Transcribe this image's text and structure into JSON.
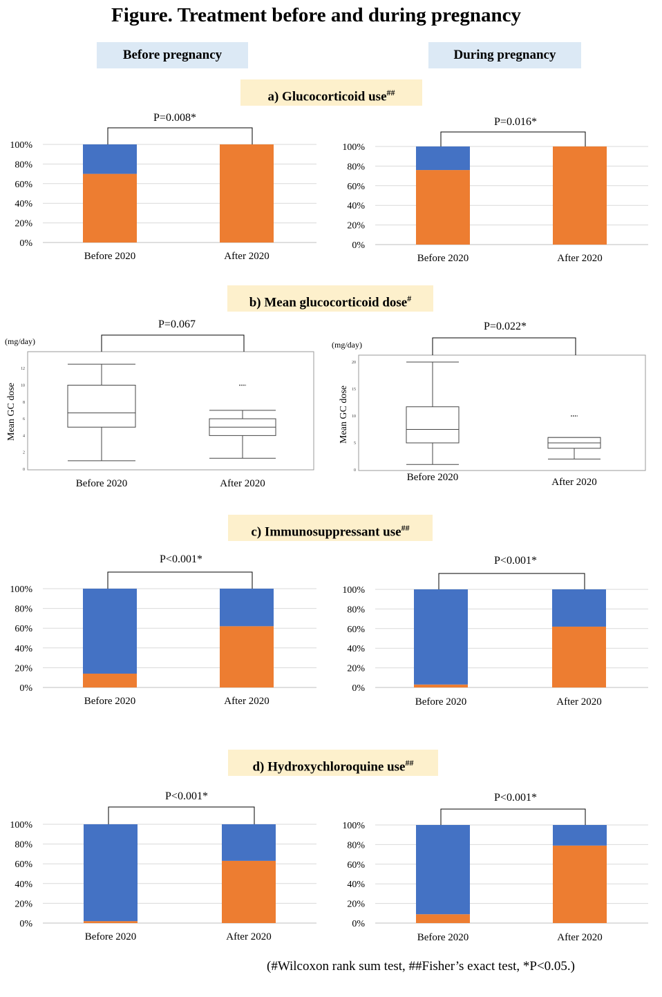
{
  "title": "Figure. Treatment before and during pregnancy",
  "columns": {
    "before": "Before pregnancy",
    "during": "During pregnancy"
  },
  "sections": [
    {
      "label": "a) Glucocorticoid  use",
      "mark": "##"
    },
    {
      "label": "b) Mean glucocorticoid dose",
      "mark": "#"
    },
    {
      "label": "c) Immunosuppressant use",
      "mark": "##"
    },
    {
      "label": "d) Hydroxychloroquine use",
      "mark": "##"
    }
  ],
  "colors": {
    "orange": "#ed7d31",
    "blue": "#4472c4",
    "grid": "#d9d9d9"
  },
  "footnote": "(#Wilcoxon rank sum test, ##Fisher’s exact test, *P<0.05.)",
  "chart_data": [
    {
      "id": "a_before",
      "type": "bar",
      "stacked": true,
      "p_value": "P=0.008*",
      "categories": [
        "Before 2020",
        "After 2020"
      ],
      "series": [
        {
          "color": "#ed7d31",
          "values": [
            70,
            100
          ]
        },
        {
          "color": "#4472c4",
          "values": [
            30,
            0
          ]
        }
      ],
      "yticks": [
        "0%",
        "20%",
        "40%",
        "60%",
        "80%",
        "100%"
      ],
      "ylim": [
        0,
        100
      ]
    },
    {
      "id": "a_during",
      "type": "bar",
      "stacked": true,
      "p_value": "P=0.016*",
      "categories": [
        "Before 2020",
        "After 2020"
      ],
      "series": [
        {
          "color": "#ed7d31",
          "values": [
            76,
            100
          ]
        },
        {
          "color": "#4472c4",
          "values": [
            24,
            0
          ]
        }
      ],
      "yticks": [
        "0%",
        "20%",
        "40%",
        "60%",
        "80%",
        "100%"
      ],
      "ylim": [
        0,
        100
      ]
    },
    {
      "id": "b_before",
      "type": "box",
      "p_value": "P=0.067",
      "unit": "(mg/day)",
      "ylabel": "Mean GC dose",
      "categories": [
        "Before 2020",
        "After 2020"
      ],
      "boxes": [
        {
          "min": 1,
          "q1": 5,
          "median": 6.7,
          "q3": 10,
          "max": 12.5,
          "outliers": []
        },
        {
          "min": 1.3,
          "q1": 4,
          "median": 5,
          "q3": 6,
          "max": 7,
          "outliers": [
            10
          ]
        }
      ],
      "yticks": [
        "0",
        "2",
        "4",
        "6",
        "8",
        "10",
        "12"
      ],
      "ylim": [
        0,
        13
      ]
    },
    {
      "id": "b_during",
      "type": "box",
      "p_value": "P=0.022*",
      "unit": "(mg/day)",
      "ylabel": "Mean GC dose",
      "categories": [
        "Before 2020",
        "After 2020"
      ],
      "boxes": [
        {
          "min": 1,
          "q1": 5,
          "median": 7.5,
          "q3": 11.7,
          "max": 20,
          "outliers": []
        },
        {
          "min": 2,
          "q1": 4,
          "median": 5,
          "q3": 6,
          "max": 6,
          "outliers": [
            10
          ]
        }
      ],
      "yticks": [
        "0",
        "5",
        "10",
        "15",
        "20"
      ],
      "ylim": [
        0,
        20
      ]
    },
    {
      "id": "c_before",
      "type": "bar",
      "stacked": true,
      "p_value": "P<0.001*",
      "categories": [
        "Before 2020",
        "After 2020"
      ],
      "series": [
        {
          "color": "#ed7d31",
          "values": [
            14,
            62
          ]
        },
        {
          "color": "#4472c4",
          "values": [
            86,
            38
          ]
        }
      ],
      "yticks": [
        "0%",
        "20%",
        "40%",
        "60%",
        "80%",
        "100%"
      ],
      "ylim": [
        0,
        100
      ]
    },
    {
      "id": "c_during",
      "type": "bar",
      "stacked": true,
      "p_value": "P<0.001*",
      "categories": [
        "Before 2020",
        "After 2020"
      ],
      "series": [
        {
          "color": "#ed7d31",
          "values": [
            3,
            62
          ]
        },
        {
          "color": "#4472c4",
          "values": [
            97,
            38
          ]
        }
      ],
      "yticks": [
        "0%",
        "20%",
        "40%",
        "60%",
        "80%",
        "100%"
      ],
      "ylim": [
        0,
        100
      ]
    },
    {
      "id": "d_before",
      "type": "bar",
      "stacked": true,
      "p_value": "P<0.001*",
      "categories": [
        "Before 2020",
        "After 2020"
      ],
      "series": [
        {
          "color": "#ed7d31",
          "values": [
            2,
            63
          ]
        },
        {
          "color": "#4472c4",
          "values": [
            98,
            37
          ]
        }
      ],
      "yticks": [
        "0%",
        "20%",
        "40%",
        "60%",
        "80%",
        "100%"
      ],
      "ylim": [
        0,
        100
      ]
    },
    {
      "id": "d_during",
      "type": "bar",
      "stacked": true,
      "p_value": "P<0.001*",
      "categories": [
        "Before 2020",
        "After 2020"
      ],
      "series": [
        {
          "color": "#ed7d31",
          "values": [
            9,
            79
          ]
        },
        {
          "color": "#4472c4",
          "values": [
            91,
            21
          ]
        }
      ],
      "yticks": [
        "0%",
        "20%",
        "40%",
        "60%",
        "80%",
        "100%"
      ],
      "ylim": [
        0,
        100
      ]
    }
  ]
}
